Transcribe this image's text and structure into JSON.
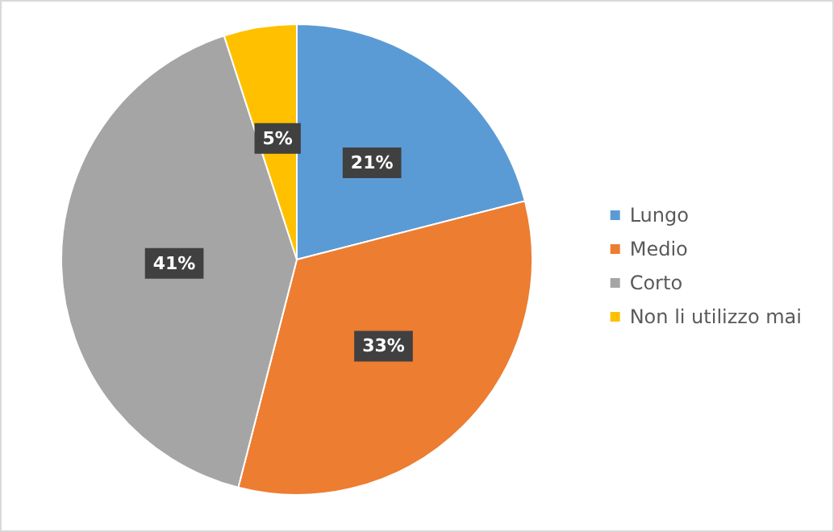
{
  "chart_data": {
    "type": "pie",
    "categories": [
      "Lungo",
      "Medio",
      "Corto",
      "Non li utilizzo mai"
    ],
    "values": [
      21,
      33,
      41,
      5
    ],
    "colors": [
      "#5b9bd5",
      "#ed7d31",
      "#a5a5a5",
      "#ffc000"
    ],
    "value_labels": [
      "21%",
      "33%",
      "41%",
      "5%"
    ],
    "legend": "right"
  }
}
